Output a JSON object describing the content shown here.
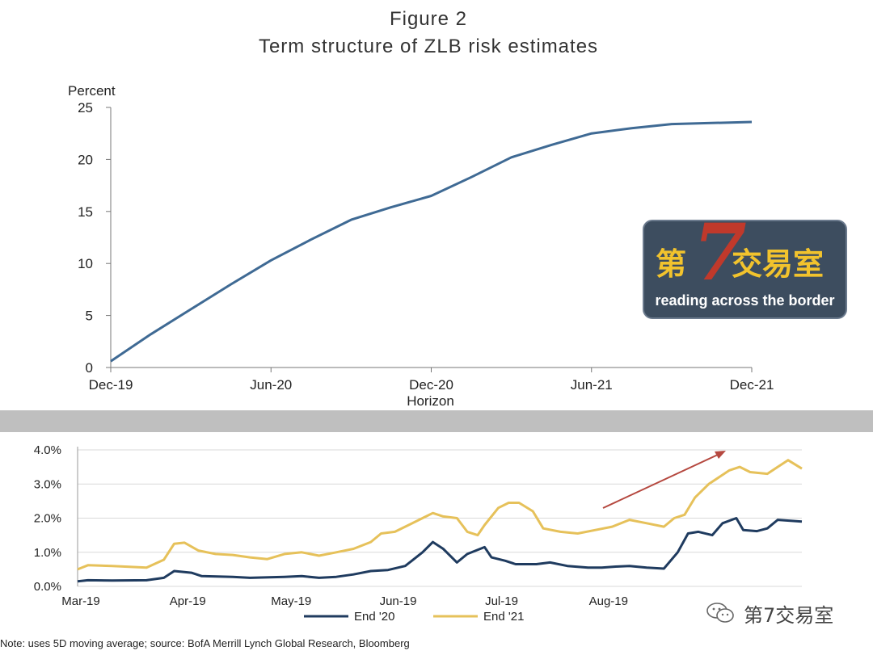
{
  "figure": {
    "label": "Figure 2",
    "title": "Term structure of ZLB risk estimates"
  },
  "top_chart_data": {
    "type": "line",
    "ylabel": "Percent",
    "xlabel": "Horizon",
    "ylim": [
      0,
      25
    ],
    "yticks": [
      "0",
      "5",
      "10",
      "15",
      "20",
      "25"
    ],
    "xticks": [
      "Dec-19",
      "Jun-20",
      "Dec-20",
      "Jun-21",
      "Dec-21"
    ],
    "x": [
      0,
      0.5,
      1,
      1.5,
      2,
      2.5,
      3,
      3.5,
      4,
      4.5,
      5,
      5.5,
      6,
      6.5,
      7,
      7.5,
      8
    ],
    "values": [
      0.6,
      3.2,
      5.6,
      8.0,
      10.3,
      12.3,
      14.2,
      15.4,
      16.5,
      18.3,
      20.2,
      21.4,
      22.5,
      23.0,
      23.4,
      23.5,
      23.6
    ],
    "color": "#3f6a94"
  },
  "chart_data": {
    "type": "line",
    "ylim": [
      0,
      4
    ],
    "yticks": [
      "0.0%",
      "1.0%",
      "2.0%",
      "3.0%",
      "4.0%"
    ],
    "xticks": [
      "Mar-19",
      "Apr-19",
      "May-19",
      "Jun-19",
      "Jul-19",
      "Aug-19"
    ],
    "x_days": [
      0,
      31,
      61,
      92,
      122,
      153,
      183
    ],
    "series": [
      {
        "name": "End '20",
        "color": "#1f3b5f",
        "points": [
          [
            0,
            0.15
          ],
          [
            3,
            0.18
          ],
          [
            10,
            0.17
          ],
          [
            20,
            0.18
          ],
          [
            25,
            0.25
          ],
          [
            28,
            0.45
          ],
          [
            33,
            0.4
          ],
          [
            36,
            0.3
          ],
          [
            45,
            0.28
          ],
          [
            50,
            0.25
          ],
          [
            60,
            0.28
          ],
          [
            65,
            0.3
          ],
          [
            70,
            0.25
          ],
          [
            75,
            0.28
          ],
          [
            80,
            0.35
          ],
          [
            85,
            0.45
          ],
          [
            90,
            0.48
          ],
          [
            95,
            0.6
          ],
          [
            100,
            1.0
          ],
          [
            103,
            1.3
          ],
          [
            106,
            1.1
          ],
          [
            110,
            0.7
          ],
          [
            113,
            0.95
          ],
          [
            118,
            1.15
          ],
          [
            120,
            0.85
          ],
          [
            124,
            0.75
          ],
          [
            127,
            0.65
          ],
          [
            133,
            0.65
          ],
          [
            137,
            0.7
          ],
          [
            142,
            0.6
          ],
          [
            148,
            0.55
          ],
          [
            152,
            0.55
          ],
          [
            156,
            0.58
          ],
          [
            160,
            0.6
          ],
          [
            165,
            0.55
          ],
          [
            170,
            0.52
          ],
          [
            174,
            1.0
          ],
          [
            177,
            1.55
          ],
          [
            180,
            1.6
          ],
          [
            184,
            1.5
          ],
          [
            187,
            1.85
          ],
          [
            191,
            2.0
          ],
          [
            193,
            1.65
          ],
          [
            197,
            1.62
          ],
          [
            200,
            1.7
          ],
          [
            203,
            1.95
          ],
          [
            210,
            1.9
          ]
        ]
      },
      {
        "name": "End '21",
        "color": "#e6c15a",
        "points": [
          [
            0,
            0.5
          ],
          [
            3,
            0.62
          ],
          [
            10,
            0.6
          ],
          [
            20,
            0.55
          ],
          [
            25,
            0.78
          ],
          [
            28,
            1.25
          ],
          [
            31,
            1.28
          ],
          [
            35,
            1.05
          ],
          [
            40,
            0.95
          ],
          [
            45,
            0.92
          ],
          [
            50,
            0.85
          ],
          [
            55,
            0.8
          ],
          [
            60,
            0.95
          ],
          [
            65,
            1.0
          ],
          [
            70,
            0.9
          ],
          [
            75,
            1.0
          ],
          [
            80,
            1.1
          ],
          [
            85,
            1.3
          ],
          [
            88,
            1.55
          ],
          [
            92,
            1.6
          ],
          [
            96,
            1.8
          ],
          [
            100,
            2.0
          ],
          [
            103,
            2.15
          ],
          [
            106,
            2.05
          ],
          [
            110,
            2.0
          ],
          [
            113,
            1.6
          ],
          [
            116,
            1.5
          ],
          [
            118,
            1.8
          ],
          [
            122,
            2.3
          ],
          [
            125,
            2.45
          ],
          [
            128,
            2.45
          ],
          [
            132,
            2.2
          ],
          [
            135,
            1.7
          ],
          [
            140,
            1.6
          ],
          [
            145,
            1.55
          ],
          [
            150,
            1.65
          ],
          [
            155,
            1.75
          ],
          [
            160,
            1.95
          ],
          [
            165,
            1.85
          ],
          [
            170,
            1.75
          ],
          [
            173,
            2.0
          ],
          [
            176,
            2.1
          ],
          [
            179,
            2.6
          ],
          [
            183,
            3.0
          ],
          [
            186,
            3.2
          ],
          [
            189,
            3.4
          ],
          [
            192,
            3.5
          ],
          [
            195,
            3.35
          ],
          [
            200,
            3.3
          ],
          [
            203,
            3.5
          ],
          [
            206,
            3.7
          ],
          [
            210,
            3.45
          ]
        ]
      }
    ],
    "annotation": "up-arrow"
  },
  "note": "Note: uses 5D moving average; source: BofA Merrill Lynch Global Research, Bloomberg",
  "logo": {
    "cn_left": "第",
    "seven": "7",
    "cn_right": "交易室",
    "subtitle": "reading across the border"
  },
  "watermark": "第7交易室"
}
